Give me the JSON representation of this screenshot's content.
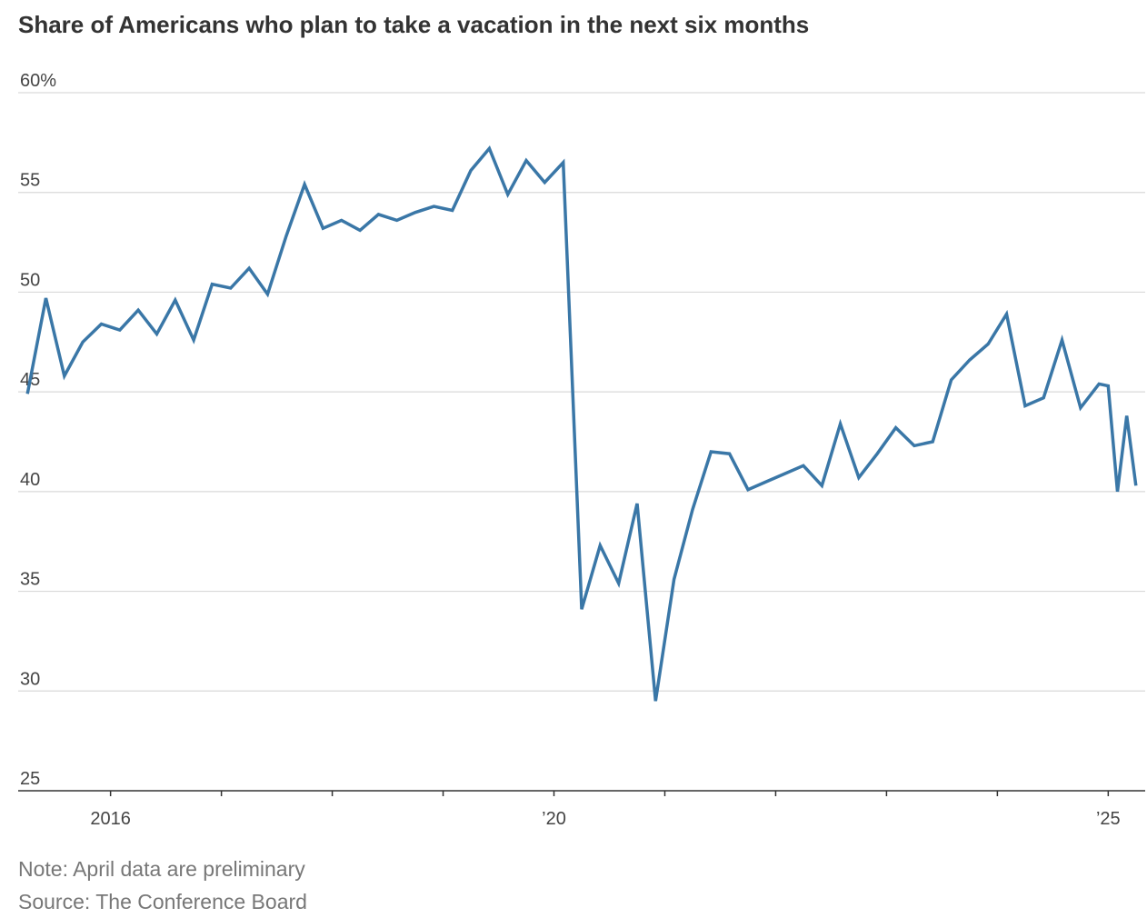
{
  "title": "Share of Americans who plan to take a vacation in the next six months",
  "note": "Note: April data are preliminary",
  "source": "Source: The Conference Board",
  "colors": {
    "line": "#3a77a7",
    "grid": "#d9d9d9",
    "axis": "#333333",
    "text": "#333333",
    "muted": "#777777"
  },
  "chart_data": {
    "type": "line",
    "title": "Share of Americans who plan to take a vacation in the next six months",
    "xlabel": "",
    "ylabel": "",
    "ylim": [
      25,
      60
    ],
    "xlim": [
      "2015-03",
      "2025-05"
    ],
    "grid": true,
    "y_ticks": [
      {
        "value": 60,
        "label": "60%"
      },
      {
        "value": 55,
        "label": "55"
      },
      {
        "value": 50,
        "label": "50"
      },
      {
        "value": 45,
        "label": "45"
      },
      {
        "value": 40,
        "label": "40"
      },
      {
        "value": 35,
        "label": "35"
      },
      {
        "value": 30,
        "label": "30"
      },
      {
        "value": 25,
        "label": "25"
      }
    ],
    "x_ticks": [
      {
        "value": "2016-01",
        "label": "2016"
      },
      {
        "value": "2017-01",
        "label": ""
      },
      {
        "value": "2018-01",
        "label": ""
      },
      {
        "value": "2019-01",
        "label": ""
      },
      {
        "value": "2020-01",
        "label": "’20"
      },
      {
        "value": "2021-01",
        "label": ""
      },
      {
        "value": "2022-01",
        "label": ""
      },
      {
        "value": "2023-01",
        "label": ""
      },
      {
        "value": "2024-01",
        "label": ""
      },
      {
        "value": "2025-01",
        "label": "’25"
      }
    ],
    "series": [
      {
        "x": [
          "2015-04",
          "2015-06",
          "2015-08",
          "2015-10",
          "2015-12",
          "2016-02",
          "2016-04",
          "2016-06",
          "2016-08",
          "2016-10",
          "2016-12",
          "2017-02",
          "2017-04",
          "2017-06",
          "2017-08",
          "2017-10",
          "2017-12",
          "2018-02",
          "2018-04",
          "2018-06",
          "2018-08",
          "2018-10",
          "2018-12",
          "2019-02",
          "2019-04",
          "2019-06",
          "2019-08",
          "2019-10",
          "2019-12",
          "2020-02",
          "2020-04",
          "2020-06",
          "2020-08",
          "2020-10",
          "2020-12",
          "2021-02",
          "2021-04",
          "2021-06",
          "2021-08",
          "2021-10",
          "2021-12",
          "2022-02",
          "2022-04",
          "2022-06",
          "2022-08",
          "2022-10",
          "2022-12",
          "2023-02",
          "2023-04",
          "2023-06",
          "2023-08",
          "2023-10",
          "2023-12",
          "2024-02",
          "2024-04",
          "2024-06",
          "2024-08",
          "2024-10",
          "2024-12",
          "2025-01",
          "2025-02",
          "2025-03",
          "2025-04"
        ],
        "values": [
          44.9,
          49.7,
          45.8,
          47.5,
          48.4,
          48.1,
          49.1,
          47.9,
          49.6,
          47.6,
          50.4,
          50.2,
          51.2,
          49.9,
          52.8,
          55.4,
          53.2,
          53.6,
          53.1,
          53.9,
          53.6,
          54.0,
          54.3,
          54.1,
          56.1,
          57.2,
          54.9,
          56.6,
          55.5,
          56.5,
          34.1,
          37.3,
          35.4,
          39.4,
          29.5,
          35.6,
          39.1,
          42.0,
          41.9,
          40.1,
          40.5,
          40.9,
          41.3,
          40.3,
          43.4,
          40.7,
          41.9,
          43.2,
          42.3,
          42.5,
          45.6,
          46.6,
          47.4,
          48.9,
          44.3,
          44.7,
          47.6,
          44.2,
          45.4,
          45.3,
          40.0,
          43.8,
          40.3
        ]
      }
    ]
  }
}
